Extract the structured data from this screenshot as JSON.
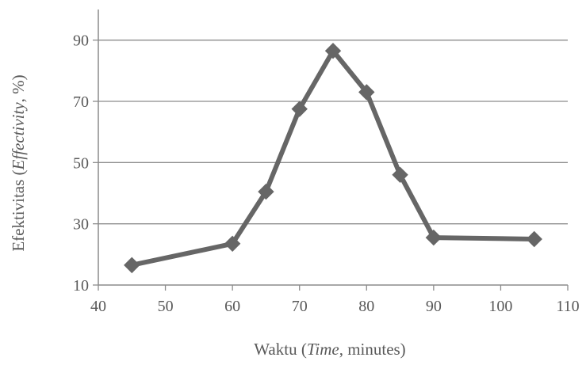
{
  "chart_data": {
    "type": "line",
    "xlabel_parts": [
      {
        "text": "Waktu (",
        "italic": false
      },
      {
        "text": "Time",
        "italic": true
      },
      {
        "text": ", minutes)",
        "italic": false
      }
    ],
    "ylabel_parts": [
      {
        "text": "Efektivitas (",
        "italic": false
      },
      {
        "text": "Effectivity",
        "italic": true
      },
      {
        "text": ", %)",
        "italic": false
      }
    ],
    "xlim": [
      40,
      110
    ],
    "ylim": [
      10,
      100
    ],
    "x_ticks": [
      40,
      50,
      60,
      70,
      80,
      90,
      100,
      110
    ],
    "x_tick_labels": [
      "40",
      "50",
      "60",
      "70",
      "80",
      "90",
      "100",
      "110"
    ],
    "y_ticks": [
      10,
      30,
      50,
      70,
      90
    ],
    "y_tick_labels": [
      "10",
      "30",
      "50",
      "70",
      "90"
    ],
    "grid": "horizontal",
    "marker": "diamond",
    "series": [
      {
        "x": [
          45,
          60,
          65,
          70,
          75,
          80,
          85,
          90,
          105
        ],
        "y": [
          16.5,
          23.5,
          40.5,
          67.5,
          86.5,
          73,
          46,
          25.5,
          25
        ],
        "color": "#666666"
      }
    ]
  }
}
